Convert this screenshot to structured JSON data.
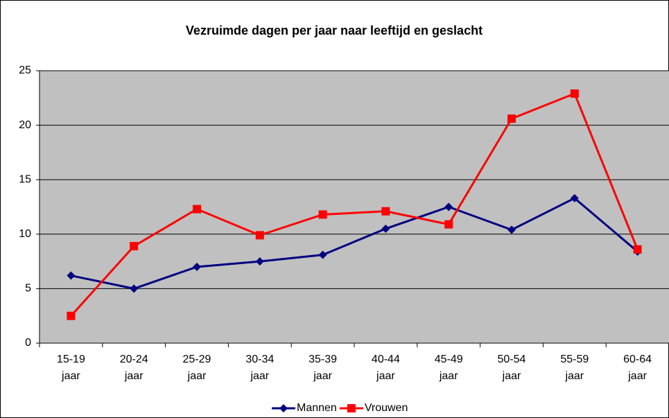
{
  "chart_data": {
    "type": "line",
    "title": "Vezruimde dagen per jaar naar leeftijd en geslacht",
    "categories": [
      "15-19 jaar",
      "20-24 jaar",
      "25-29 jaar",
      "30-34 jaar",
      "35-39 jaar",
      "40-44 jaar",
      "45-49 jaar",
      "50-54 jaar",
      "55-59 jaar",
      "60-64 jaar"
    ],
    "series": [
      {
        "name": "Mannen",
        "color": "#000080",
        "marker": "diamond",
        "values": [
          6.2,
          5.0,
          7.0,
          7.5,
          8.1,
          10.5,
          12.5,
          10.4,
          13.3,
          8.4
        ]
      },
      {
        "name": "Vrouwen",
        "color": "#ff0000",
        "marker": "square",
        "values": [
          2.5,
          8.9,
          12.3,
          9.9,
          11.8,
          12.1,
          10.9,
          20.6,
          22.9,
          8.6
        ]
      }
    ],
    "ylim": [
      0,
      25
    ],
    "yticks": [
      0,
      5,
      10,
      15,
      20,
      25
    ],
    "grid": true,
    "legend": "bottom"
  }
}
